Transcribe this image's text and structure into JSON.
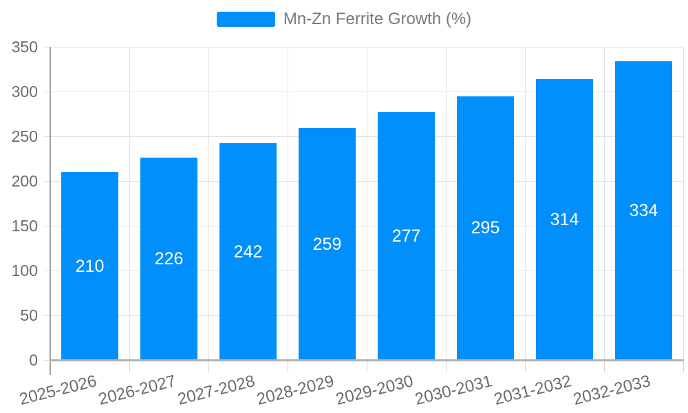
{
  "legend": {
    "label": "Mn-Zn Ferrite Growth (%)"
  },
  "chart_data": {
    "type": "bar",
    "title": "",
    "xlabel": "",
    "ylabel": "",
    "categories": [
      "2025-2026",
      "2026-2027",
      "2027-2028",
      "2028-2029",
      "2029-2030",
      "2030-2031",
      "2031-2032",
      "2032-2033"
    ],
    "series": [
      {
        "name": "Mn-Zn Ferrite Growth (%)",
        "values": [
          210,
          226,
          242,
          259,
          277,
          295,
          314,
          334
        ]
      }
    ],
    "values": [
      210,
      226,
      242,
      259,
      277,
      295,
      314,
      334
    ],
    "value_labels_shown": true,
    "ylim": [
      0,
      350
    ],
    "yticks": [
      0,
      50,
      100,
      150,
      200,
      250,
      300,
      350
    ],
    "grid": true,
    "legend_position": "top"
  },
  "colors": {
    "bar": "#008FFB",
    "value_label": "#FFFFFF",
    "grid_line": "#e2e2e2",
    "axis_tick": "#d4d4d4",
    "y_axis_line": "#a0a0a0",
    "x_axis_line": "#b3b3b3",
    "axis_label_text": "#6c6c6c",
    "legend_text": "#77797c",
    "background": "#ffffff"
  }
}
